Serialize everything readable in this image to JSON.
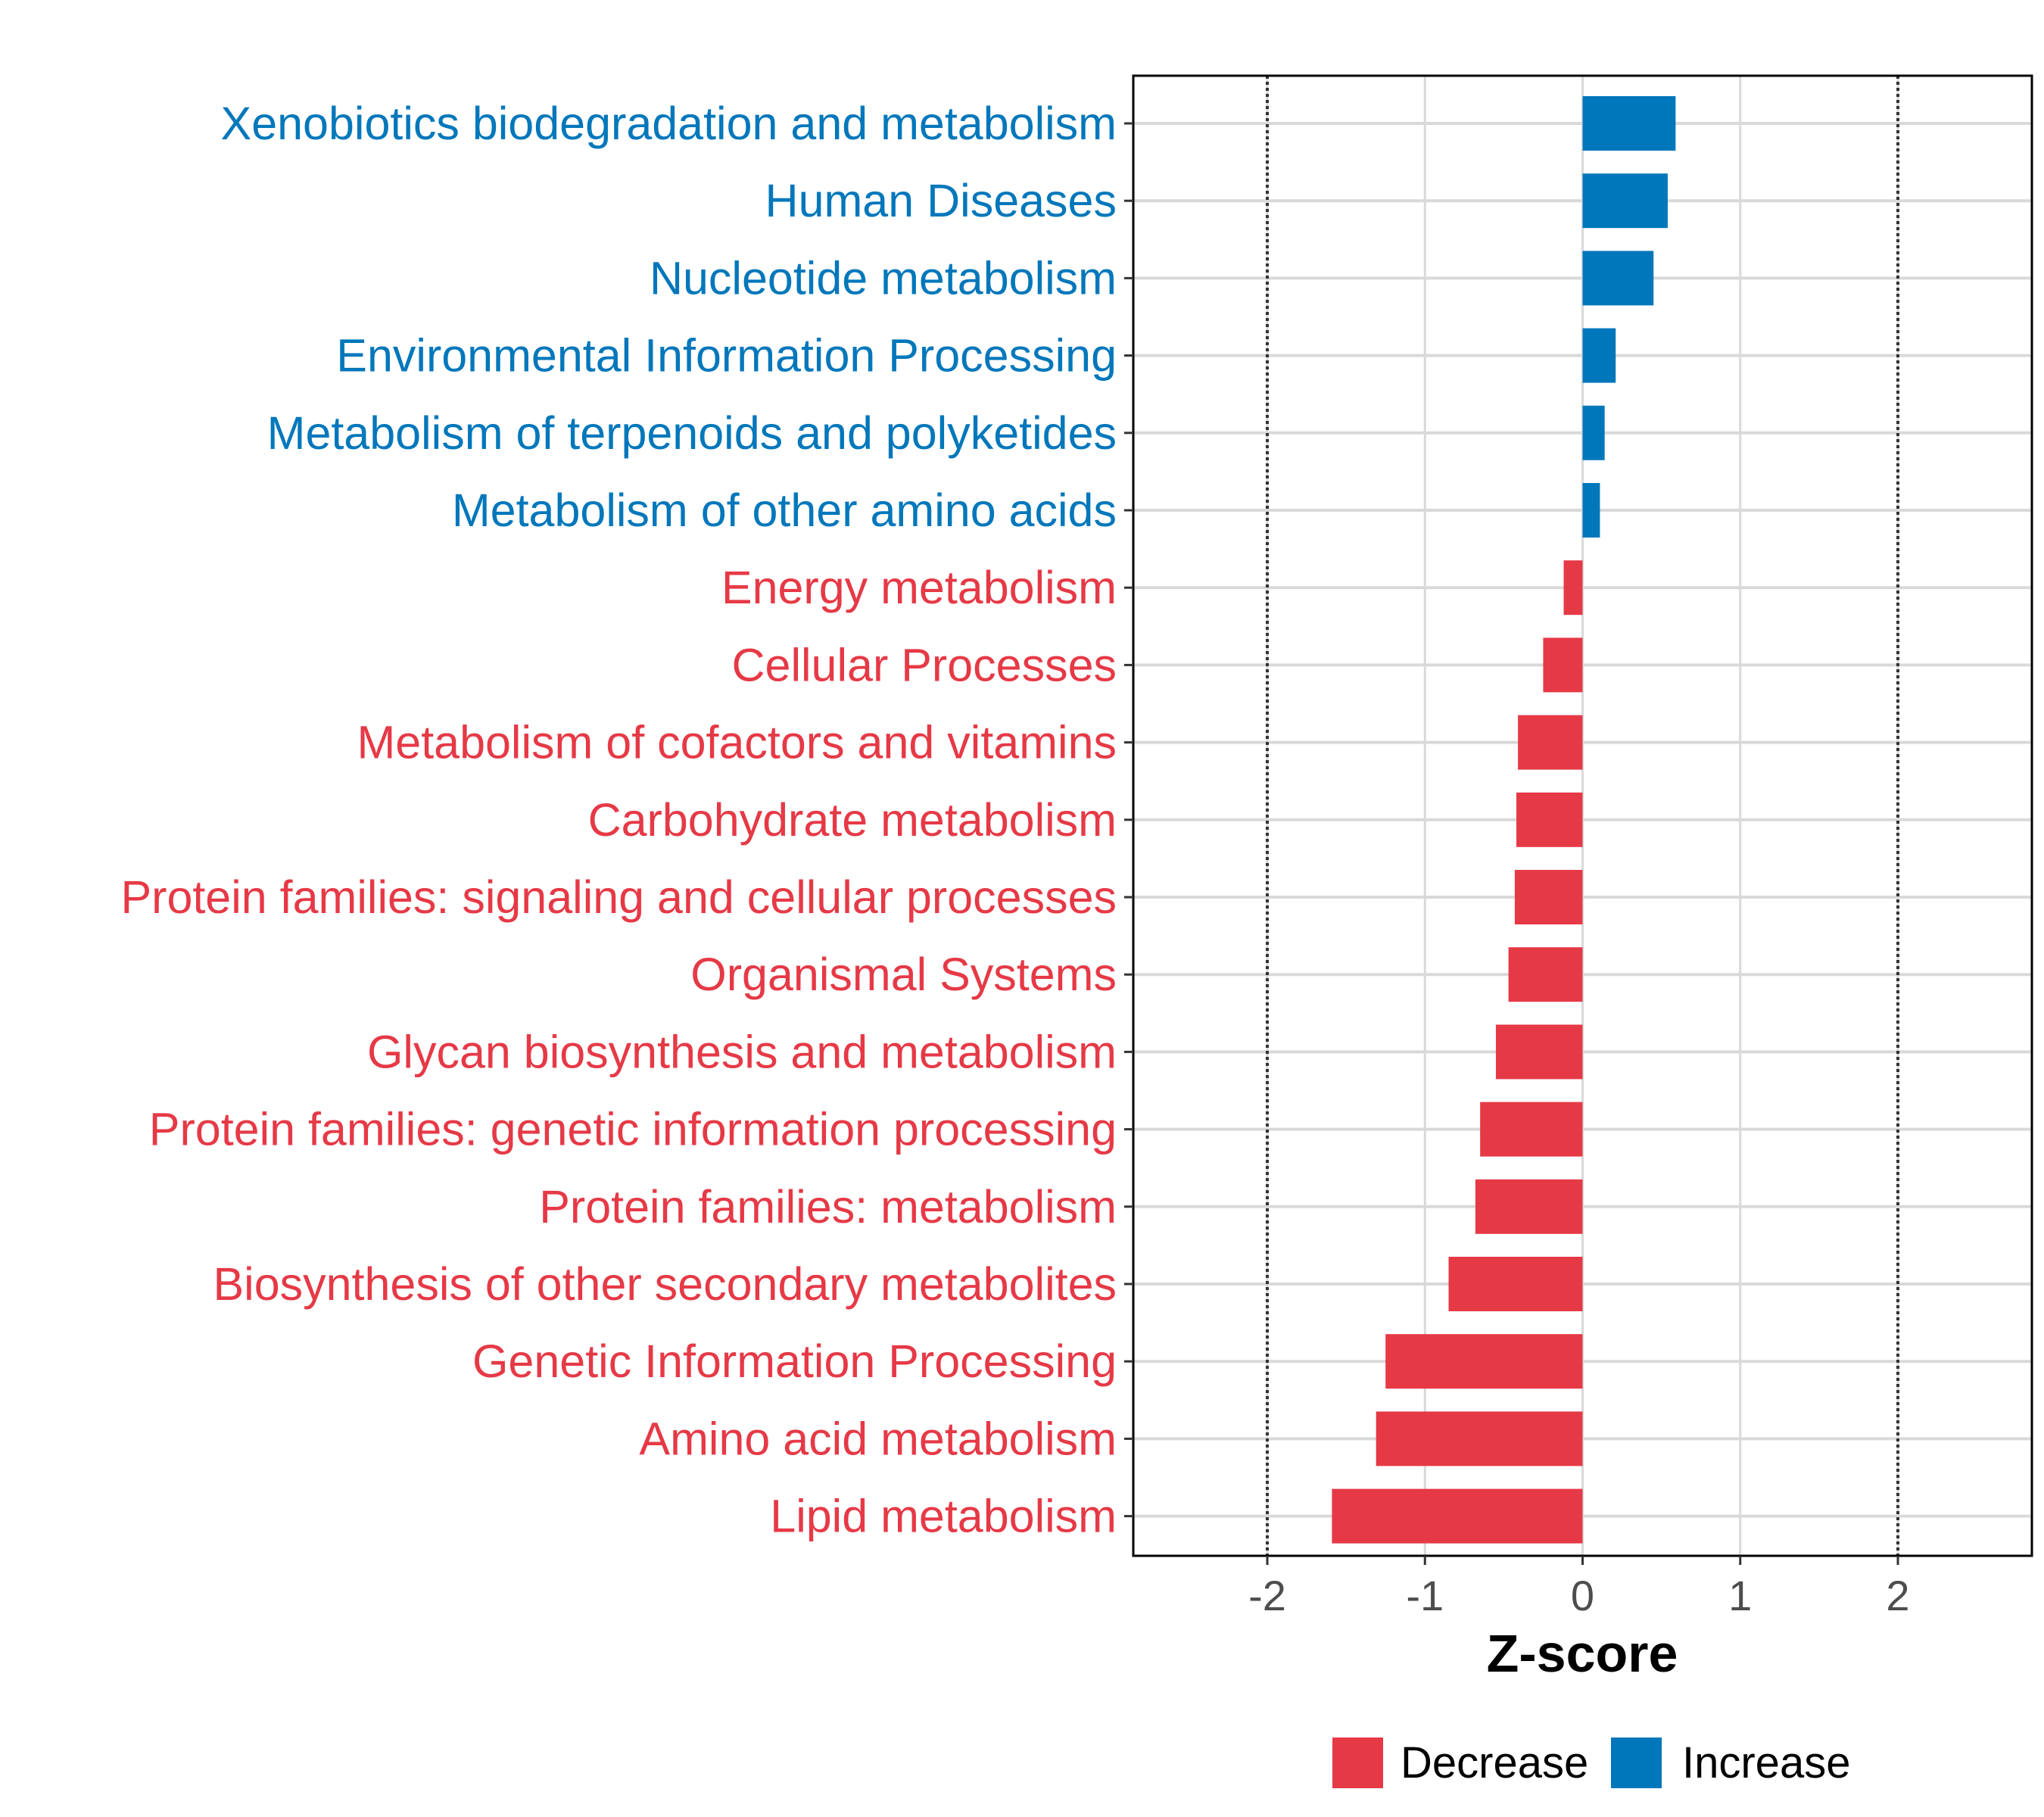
{
  "chart_data": {
    "type": "bar",
    "orientation": "horizontal",
    "xlabel": "Z-score",
    "xlim": [
      -2.85,
      2.85
    ],
    "xticks": [
      -2,
      -1,
      0,
      1,
      2
    ],
    "xtick_labels": [
      "-2",
      "-1",
      "0",
      "1",
      "2"
    ],
    "reference_lines": [
      -2,
      2
    ],
    "colors": {
      "Decrease": "#e63946",
      "Increase": "#0077bb"
    },
    "categories": [
      "Xenobiotics biodegradation and metabolism",
      "Human Diseases",
      "Nucleotide metabolism",
      "Environmental Information Processing",
      "Metabolism of terpenoids and polyketides",
      "Metabolism of other amino acids",
      "Energy metabolism",
      "Cellular Processes",
      "Metabolism of cofactors and vitamins",
      "Carbohydrate metabolism",
      "Protein families: signaling and cellular processes",
      "Organismal Systems",
      "Glycan biosynthesis and metabolism",
      "Protein families: genetic information processing",
      "Protein families: metabolism",
      "Biosynthesis of other secondary metabolites",
      "Genetic Information Processing",
      "Amino acid metabolism",
      "Lipid metabolism"
    ],
    "values": [
      0.59,
      0.54,
      0.45,
      0.21,
      0.14,
      0.11,
      -0.12,
      -0.25,
      -0.41,
      -0.42,
      -0.43,
      -0.47,
      -0.55,
      -0.65,
      -0.68,
      -0.85,
      -1.25,
      -1.31,
      -1.59
    ],
    "groups": [
      "Increase",
      "Increase",
      "Increase",
      "Increase",
      "Increase",
      "Increase",
      "Decrease",
      "Decrease",
      "Decrease",
      "Decrease",
      "Decrease",
      "Decrease",
      "Decrease",
      "Decrease",
      "Decrease",
      "Decrease",
      "Decrease",
      "Decrease",
      "Decrease"
    ],
    "legend": [
      "Decrease",
      "Increase"
    ],
    "legend_position": "bottom"
  }
}
